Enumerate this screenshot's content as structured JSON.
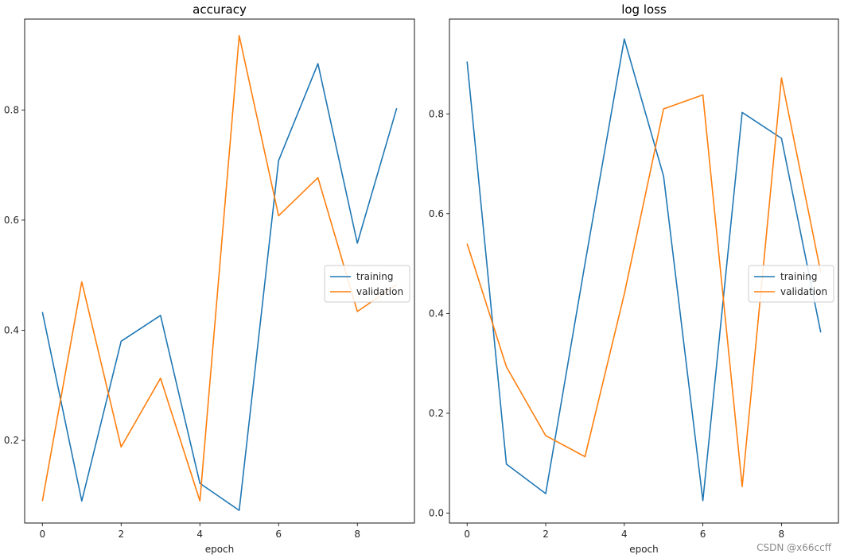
{
  "colors": {
    "training": "#1f77b4",
    "validation": "#ff7f0e"
  },
  "watermark": "CSDN @x66ccff",
  "chart_data": [
    {
      "type": "line",
      "title": "accuracy",
      "xlabel": "epoch",
      "ylabel": "",
      "x": [
        0,
        1,
        2,
        3,
        4,
        5,
        6,
        7,
        8,
        9
      ],
      "xlim": [
        -0.45,
        9.45
      ],
      "ylim": [
        0.05,
        0.965
      ],
      "xticks": [
        0,
        2,
        4,
        6,
        8
      ],
      "xtick_labels": [
        "0",
        "2",
        "4",
        "6",
        "8"
      ],
      "yticks": [
        0.2,
        0.4,
        0.6,
        0.8
      ],
      "ytick_labels": [
        "0.2",
        "0.4",
        "0.6",
        "0.8"
      ],
      "legend_position": "center-right",
      "grid": false,
      "series": [
        {
          "name": "training",
          "values": [
            0.433,
            0.09,
            0.38,
            0.427,
            0.122,
            0.073,
            0.708,
            0.884,
            0.558,
            0.803
          ]
        },
        {
          "name": "validation",
          "values": [
            0.09,
            0.488,
            0.188,
            0.313,
            0.09,
            0.935,
            0.608,
            0.677,
            0.434,
            0.483
          ]
        }
      ]
    },
    {
      "type": "line",
      "title": "log loss",
      "xlabel": "epoch",
      "ylabel": "",
      "x": [
        0,
        1,
        2,
        3,
        4,
        5,
        6,
        7,
        8,
        9
      ],
      "xlim": [
        -0.45,
        9.45
      ],
      "ylim": [
        -0.02,
        0.99
      ],
      "xticks": [
        0,
        2,
        4,
        6,
        8
      ],
      "xtick_labels": [
        "0",
        "2",
        "4",
        "6",
        "8"
      ],
      "yticks": [
        0.0,
        0.2,
        0.4,
        0.6,
        0.8
      ],
      "ytick_labels": [
        "0.0",
        "0.2",
        "0.4",
        "0.6",
        "0.8"
      ],
      "legend_position": "center-right",
      "grid": false,
      "series": [
        {
          "name": "training",
          "values": [
            0.905,
            0.098,
            0.039,
            0.5,
            0.95,
            0.675,
            0.025,
            0.803,
            0.751,
            0.362
          ]
        },
        {
          "name": "validation",
          "values": [
            0.54,
            0.293,
            0.155,
            0.113,
            0.439,
            0.81,
            0.838,
            0.053,
            0.872,
            0.482
          ]
        }
      ]
    }
  ]
}
